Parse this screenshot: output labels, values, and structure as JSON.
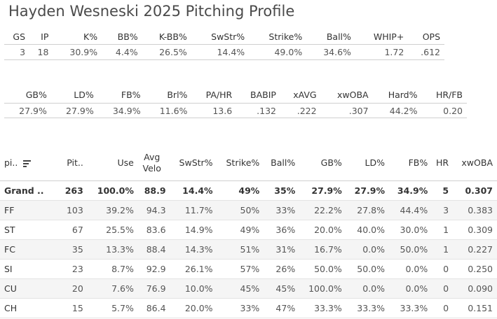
{
  "title": "Hayden Wesneski 2025 Pitching Profile",
  "summary1": {
    "headers": [
      "GS",
      "IP",
      "K%",
      "BB%",
      "K-BB%",
      "SwStr%",
      "Strike%",
      "Ball%",
      "WHIP+",
      "OPS"
    ],
    "values": [
      "3",
      "18",
      "30.9%",
      "4.4%",
      "26.5%",
      "14.4%",
      "49.0%",
      "34.6%",
      "1.72",
      ".612"
    ]
  },
  "summary2": {
    "headers": [
      "GB%",
      "LD%",
      "FB%",
      "Brl%",
      "PA/HR",
      "BABIP",
      "xAVG",
      "xwOBA",
      "Hard%",
      "HR/FB"
    ],
    "values": [
      "27.9%",
      "27.9%",
      "34.9%",
      "11.6%",
      "13.6",
      ".132",
      ".222",
      ".307",
      "44.2%",
      "0.20"
    ]
  },
  "pitch_table": {
    "headers": [
      "pi..",
      "Pit..",
      "Use",
      "Avg\nVelo",
      "SwStr%",
      "Strike%",
      "Ball%",
      "GB%",
      "LD%",
      "FB%",
      "HR",
      "xwOBA"
    ],
    "sort_icon": "sort-icon",
    "rows": [
      [
        "Grand ..",
        "263",
        "100.0%",
        "88.9",
        "14.4%",
        "49%",
        "35%",
        "27.9%",
        "27.9%",
        "34.9%",
        "5",
        "0.307"
      ],
      [
        "FF",
        "103",
        "39.2%",
        "94.3",
        "11.7%",
        "50%",
        "33%",
        "22.2%",
        "27.8%",
        "44.4%",
        "3",
        "0.383"
      ],
      [
        "ST",
        "67",
        "25.5%",
        "83.6",
        "14.9%",
        "49%",
        "36%",
        "20.0%",
        "40.0%",
        "30.0%",
        "1",
        "0.309"
      ],
      [
        "FC",
        "35",
        "13.3%",
        "88.4",
        "14.3%",
        "51%",
        "31%",
        "16.7%",
        "0.0%",
        "50.0%",
        "1",
        "0.227"
      ],
      [
        "SI",
        "23",
        "8.7%",
        "92.9",
        "26.1%",
        "57%",
        "26%",
        "50.0%",
        "50.0%",
        "0.0%",
        "0",
        "0.250"
      ],
      [
        "CU",
        "20",
        "7.6%",
        "76.9",
        "10.0%",
        "45%",
        "45%",
        "100.0%",
        "0.0%",
        "0.0%",
        "0",
        "0.090"
      ],
      [
        "CH",
        "15",
        "5.7%",
        "86.4",
        "20.0%",
        "33%",
        "47%",
        "33.3%",
        "33.3%",
        "33.3%",
        "0",
        "0.151"
      ]
    ]
  }
}
